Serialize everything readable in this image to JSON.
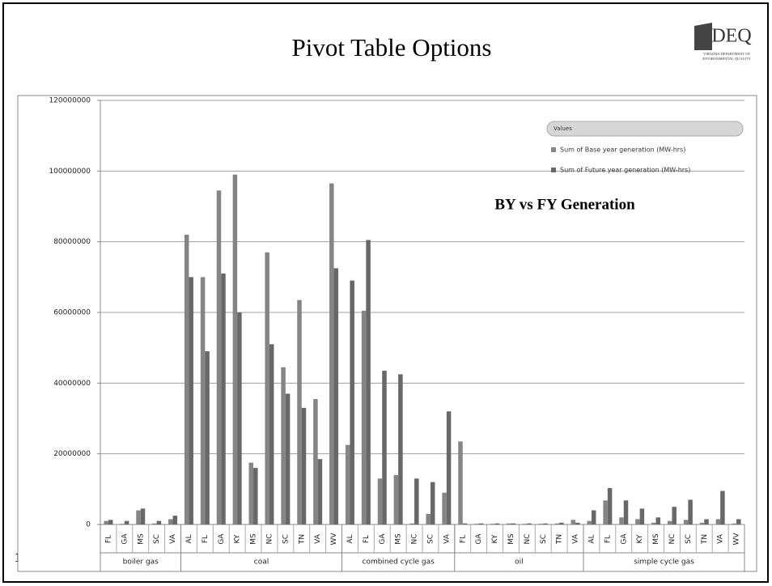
{
  "slide": {
    "title": "Pivot Table Options",
    "page_number": "15",
    "logo": {
      "name": "DEQ",
      "line1": "VIRGINIA DEPARTMENT OF",
      "line2": "ENVIRONMENTAL QUALITY"
    }
  },
  "chart_data": {
    "type": "bar",
    "annotation": "BY vs FY Generation",
    "legend_title": "Values",
    "groups": [
      {
        "name": "boiler gas",
        "categories": [
          "FL",
          "GA",
          "MS",
          "SC",
          "VA"
        ]
      },
      {
        "name": "coal",
        "categories": [
          "AL",
          "FL",
          "GA",
          "KY",
          "MS",
          "NC",
          "SC",
          "TN",
          "VA",
          "WV"
        ]
      },
      {
        "name": "combined cycle gas",
        "categories": [
          "AL",
          "FL",
          "GA",
          "MS",
          "NC",
          "SC",
          "VA"
        ]
      },
      {
        "name": "oil",
        "categories": [
          "FL",
          "GA",
          "KY",
          "MS",
          "NC",
          "SC",
          "TN",
          "VA"
        ]
      },
      {
        "name": "simple cycle gas",
        "categories": [
          "AL",
          "FL",
          "GA",
          "KY",
          "MS",
          "NC",
          "SC",
          "TN",
          "VA",
          "WV"
        ]
      }
    ],
    "series": [
      {
        "name": "Sum of Base year generation (MW-hrs)",
        "color": "#858585",
        "values": [
          1000000,
          200000,
          4000000,
          300000,
          1500000,
          82000000,
          70000000,
          94500000,
          99000000,
          17500000,
          77000000,
          44500000,
          63500000,
          35500000,
          96500000,
          22500000,
          60500000,
          13000000,
          14000000,
          300000,
          3000000,
          9000000,
          23500000,
          200000,
          200000,
          300000,
          200000,
          200000,
          300000,
          1300000,
          1000000,
          6800000,
          2000000,
          1500000,
          500000,
          1000000,
          1300000,
          500000,
          1500000,
          300000
        ]
      },
      {
        "name": "Sum of Future year generation (MW-hrs)",
        "color": "#686868",
        "values": [
          1300000,
          1000000,
          4500000,
          1000000,
          2500000,
          70000000,
          49000000,
          71000000,
          60000000,
          16000000,
          51000000,
          37000000,
          33000000,
          18500000,
          72500000,
          69000000,
          80500000,
          43500000,
          42500000,
          13000000,
          12000000,
          32000000,
          300000,
          300000,
          300000,
          300000,
          300000,
          300000,
          500000,
          500000,
          4000000,
          10300000,
          6800000,
          4500000,
          2000000,
          5000000,
          7000000,
          1500000,
          9500000,
          1500000
        ]
      }
    ],
    "ylim": [
      0,
      120000000
    ],
    "yticks": [
      0,
      20000000,
      40000000,
      60000000,
      80000000,
      100000000,
      120000000
    ],
    "grid": true
  }
}
